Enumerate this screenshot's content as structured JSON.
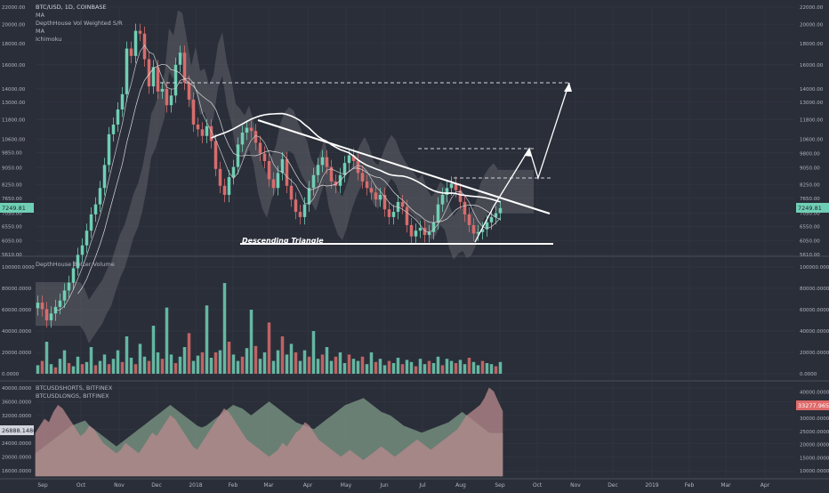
{
  "chart_data": [
    {
      "type": "candlestick",
      "title": "BTC/USD, 1D, COINBASE",
      "indicators": [
        "MA",
        "DepthHouse Vol Weighted S/R",
        "MA",
        "Ichimoku"
      ],
      "y_ticks": [
        "22000.00",
        "20000.00",
        "18000.00",
        "16000.00",
        "14000.00",
        "13000.00",
        "11800.00",
        "10600.00",
        "9850.00",
        "8250.00",
        "7650.00",
        "7050.00",
        "6550.00",
        "6050.00",
        "5610.00"
      ],
      "y_ticks_right": [
        "22000.00",
        "20000.00",
        "18000.00",
        "16000.00",
        "14000.00",
        "13000.00",
        "11800.00",
        "10600.00",
        "9800.00",
        "9050.00",
        "8250.00",
        "7650.00",
        "7050.00",
        "6550.00",
        "6050.00",
        "5610.00"
      ],
      "y_ticks_left": [
        "22000.00",
        "20000.00",
        "18000.00",
        "16000.00",
        "14000.00",
        "13000.00",
        "11800.00",
        "10600.00",
        "9850.00",
        "9050.00",
        "8250.00",
        "7650.00",
        "7050.00",
        "6550.00",
        "6050.00",
        "5610.00"
      ],
      "price_label": "7249.81",
      "annotation": "Descending Triangle",
      "closes": [
        4300,
        4150,
        3900,
        4050,
        4200,
        4350,
        4600,
        4800,
        5200,
        5600,
        5900,
        6400,
        7000,
        7400,
        8100,
        9200,
        10900,
        11500,
        12500,
        13600,
        17500,
        16800,
        19300,
        19000,
        16500,
        14200,
        15800,
        13800,
        14000,
        12800,
        13500,
        16000,
        17100,
        14500,
        13200,
        11500,
        11200,
        10800,
        11400,
        10500,
        9000,
        8200,
        7800,
        8600,
        9100,
        10300,
        11000,
        11300,
        11100,
        10400,
        9800,
        9400,
        8500,
        8100,
        8800,
        9500,
        8200,
        7600,
        7100,
        6900,
        7400,
        8100,
        8700,
        9200,
        9600,
        9100,
        8400,
        8200,
        8700,
        9300,
        9700,
        9400,
        8800,
        8400,
        8100,
        7900,
        7600,
        7800,
        7200,
        6900,
        7100,
        7500,
        7300,
        6600,
        6200,
        6400,
        6500,
        6250,
        6350,
        6700,
        7400,
        7800,
        8100,
        8300,
        8000,
        7500,
        7000,
        6600,
        6300,
        6350,
        6450,
        6700,
        6900,
        7050,
        7249.81
      ]
    },
    {
      "type": "bar",
      "title": "DepthHouse Better Volume",
      "y_ticks": [
        "100000.0000",
        "80000.0000",
        "60000.0000",
        "40000.0000",
        "20000.0000",
        "0.0000"
      ],
      "values": [
        8000,
        12000,
        30000,
        9000,
        6000,
        14000,
        22000,
        10000,
        7000,
        16000,
        9000,
        11000,
        25000,
        8000,
        12000,
        18000,
        9000,
        14000,
        22000,
        11000,
        35000,
        15000,
        9000,
        28000,
        16000,
        12000,
        45000,
        20000,
        14000,
        62000,
        18000,
        10000,
        16000,
        25000,
        38000,
        12000,
        17000,
        20000,
        64000,
        15000,
        20000,
        22000,
        85000,
        30000,
        18000,
        12000,
        16000,
        24000,
        60000,
        26000,
        14000,
        20000,
        48000,
        12000,
        22000,
        35000,
        18000,
        28000,
        20000,
        12000,
        22000,
        16000,
        40000,
        14000,
        18000,
        25000,
        12000,
        16000,
        20000,
        10000,
        18000,
        14000,
        12000,
        16000,
        9000,
        20000,
        11000,
        14000,
        8000,
        12000,
        10000,
        15000,
        9000,
        13000,
        11000,
        7000,
        14000,
        9000,
        12000,
        10000,
        16000,
        8000,
        14000,
        12000,
        10000,
        13000,
        9000,
        15000,
        11000,
        8000,
        12000,
        10000,
        9000,
        7000,
        11000
      ]
    },
    {
      "type": "area",
      "series": [
        {
          "name": "BTCUSDSHORTS, BITFINEX",
          "values": [
            27000,
            29000,
            31000,
            30000,
            33000,
            35000,
            34000,
            32000,
            30000,
            28000,
            26000,
            27000,
            29000,
            28000,
            26000,
            24000,
            23000,
            22000,
            21000,
            22000,
            24000,
            23000,
            22000,
            21000,
            23000,
            25000,
            27000,
            26000,
            28000,
            30000,
            32000,
            31000,
            29000,
            27000,
            25000,
            23000,
            22000,
            24000,
            26000,
            28000,
            30000,
            32000,
            34000,
            33000,
            31000,
            29000,
            27000,
            25000,
            24000,
            23000,
            22000,
            21000,
            20000,
            21000,
            22000,
            24000,
            23000,
            25000,
            27000,
            28000,
            30000,
            29000,
            27000,
            25000,
            24000,
            23000,
            22000,
            21000,
            20000,
            21000,
            22000,
            21000,
            20000,
            19000,
            20000,
            21000,
            22000,
            23000,
            22000,
            21000,
            20000,
            21000,
            22000,
            23000,
            24000,
            25000,
            24000,
            23000,
            22000,
            23000,
            24000,
            25000,
            26000,
            27000,
            28000,
            30000,
            32000,
            33000,
            34000,
            35000,
            37000,
            40000,
            39000,
            36000,
            33277.9659
          ]
        },
        {
          "name": "BTCUSDLONGS, BITFINEX",
          "values": [
            21000,
            22000,
            23000,
            24000,
            25000,
            26000,
            27000,
            28000,
            29000,
            29500,
            30000,
            30500,
            29000,
            28000,
            27000,
            26000,
            25000,
            24000,
            23000,
            24000,
            25000,
            26000,
            27000,
            28000,
            29000,
            30000,
            31000,
            32000,
            33000,
            34000,
            35000,
            34000,
            33000,
            32000,
            31000,
            30000,
            29000,
            28500,
            29000,
            30000,
            31000,
            32000,
            33000,
            34000,
            35000,
            34500,
            34000,
            33000,
            32000,
            33000,
            34000,
            35000,
            36000,
            35000,
            34000,
            33000,
            32000,
            31000,
            30000,
            29500,
            29000,
            28500,
            28000,
            29000,
            30000,
            31000,
            32000,
            33000,
            34000,
            35000,
            35500,
            36000,
            36500,
            37000,
            36000,
            35000,
            34000,
            33000,
            32500,
            32000,
            31000,
            30000,
            29000,
            28500,
            28000,
            27500,
            27000,
            27500,
            28000,
            28500,
            29000,
            29500,
            30000,
            31000,
            32000,
            33000,
            32000,
            31000,
            30000,
            29000,
            28000,
            27000,
            26888.1486,
            26888.1486,
            26888.1486
          ]
        }
      ],
      "y_ticks": [
        "40000.0000",
        "36000.0000",
        "32000.0000",
        "28000.0000",
        "24000.0000",
        "20000.0000",
        "16000.0000"
      ],
      "y_ticks_right": [
        "40000.0000",
        "35000.0000",
        "30000.0000",
        "25000.0000",
        "20000.0000",
        "15000.0000",
        "10000.0000"
      ],
      "price_label_left": "26888.1486",
      "price_label_right": "33277.9659"
    }
  ],
  "x_axis": [
    "Sep",
    "Oct",
    "Nov",
    "Dec",
    "2018",
    "Feb",
    "Mar",
    "Apr",
    "May",
    "Jun",
    "Jul",
    "Aug",
    "Sep",
    "Oct",
    "Nov",
    "Dec",
    "2019",
    "Feb",
    "Mar",
    "Apr"
  ],
  "colors": {
    "background": "#2a2e39",
    "up": "#6fcfb4",
    "down": "#d86c6c",
    "grid": "#363a45",
    "text": "#b2b5be",
    "cloud": "#6c6c73"
  }
}
